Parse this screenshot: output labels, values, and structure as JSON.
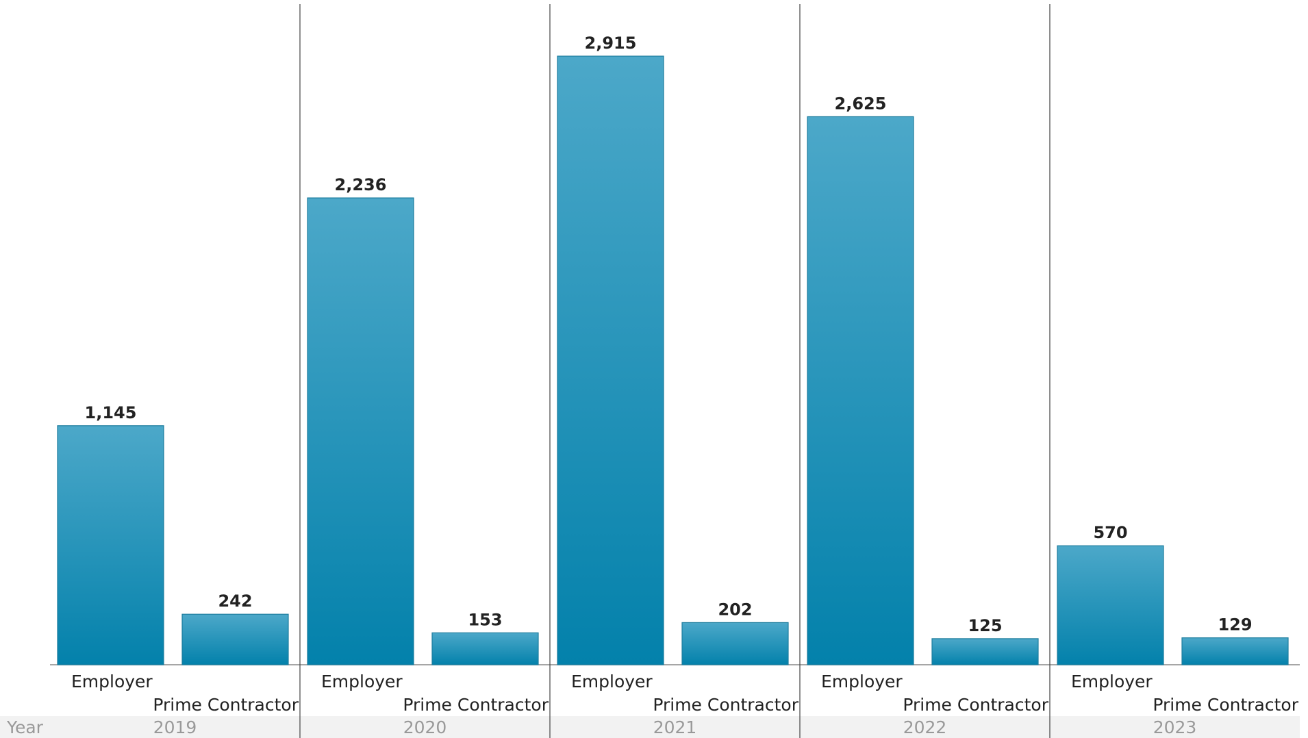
{
  "chart_data": {
    "type": "bar",
    "x_label": "Year",
    "categories": [
      "2019",
      "2020",
      "2021",
      "2022",
      "2023"
    ],
    "series": [
      {
        "name": "Employer",
        "color": "#0a84ad",
        "values": [
          1145,
          2236,
          2915,
          2625,
          570
        ],
        "value_labels": [
          "1,145",
          "2,236",
          "2,915",
          "2,625",
          "570"
        ]
      },
      {
        "name": "Prime Contractor",
        "color": "#0a84ad",
        "values": [
          242,
          153,
          202,
          125,
          129
        ]
      }
    ]
  }
}
